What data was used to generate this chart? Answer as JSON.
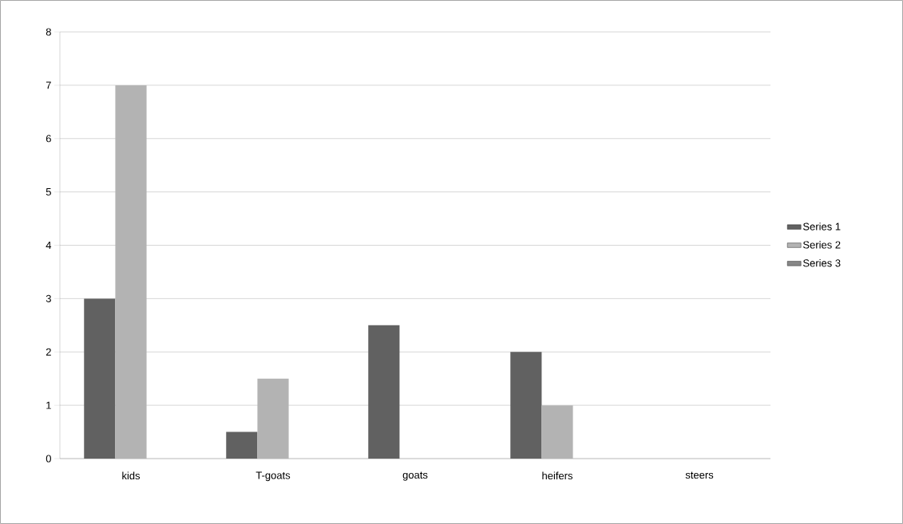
{
  "chart_data": {
    "type": "bar",
    "categories": [
      "kids",
      "T-goats",
      "goats",
      "heifers",
      "steers"
    ],
    "series": [
      {
        "name": "Series 1",
        "color": "#616161",
        "values": [
          3,
          0.5,
          2.5,
          2,
          0
        ]
      },
      {
        "name": "Series 2",
        "color": "#b3b3b3",
        "values": [
          7,
          1.5,
          0,
          1,
          0
        ]
      },
      {
        "name": "Series 3",
        "color": "#878787",
        "values": [
          0,
          0,
          0,
          0,
          0
        ]
      }
    ],
    "ylim": [
      0,
      8
    ],
    "yticks": [
      0,
      1,
      2,
      3,
      4,
      5,
      6,
      7,
      8
    ],
    "grid": "y",
    "legend": "right"
  }
}
